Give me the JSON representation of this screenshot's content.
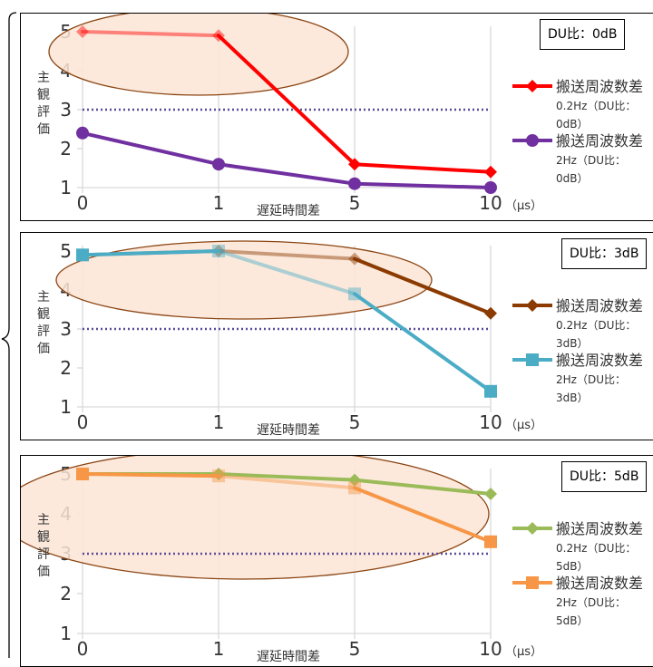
{
  "chart_data": [
    {
      "type": "line",
      "du_label": "DU比：0dB",
      "ylabel": "主観評価",
      "xlabel": "遅延時間差",
      "x_unit": "（μs）",
      "categories": [
        "0",
        "1",
        "5",
        "10"
      ],
      "ylim": [
        1,
        5
      ],
      "yticks": [
        "1",
        "2",
        "3",
        "4",
        "5"
      ],
      "reference_line": 3,
      "series": [
        {
          "name": "搬送周波数差0.2Hz（DU比：0dB）",
          "legend_lines": [
            "搬送周波数差",
            "0.2Hz（DU比：",
            "0dB）"
          ],
          "values": [
            5.0,
            4.9,
            1.6,
            1.4
          ],
          "color": "#ff0000",
          "marker": "diamond",
          "faded_points": [
            0,
            1
          ]
        },
        {
          "name": "搬送周波数差2Hz（DU比：0dB）",
          "legend_lines": [
            "搬送周波数差",
            "2Hz（DU比：",
            "0dB）"
          ],
          "values": [
            2.4,
            1.6,
            1.1,
            1.0
          ],
          "color": "#7030a0",
          "marker": "circle",
          "faded_points": []
        }
      ]
    },
    {
      "type": "line",
      "du_label": "DU比：3dB",
      "ylabel": "主観評価",
      "xlabel": "遅延時間差",
      "x_unit": "（μs）",
      "categories": [
        "0",
        "1",
        "5",
        "10"
      ],
      "ylim": [
        1,
        5
      ],
      "yticks": [
        "1",
        "2",
        "3",
        "4",
        "5"
      ],
      "reference_line": 3,
      "series": [
        {
          "name": "搬送周波数差0.2Hz（DU比：3dB）",
          "legend_lines": [
            "搬送周波数差",
            "0.2Hz（DU比：",
            "3dB）"
          ],
          "values": [
            4.9,
            5.0,
            4.8,
            3.4
          ],
          "color": "#8b3a00",
          "marker": "diamond",
          "faded_points": [
            0,
            1,
            2
          ]
        },
        {
          "name": "搬送周波数差2Hz（DU比：3dB）",
          "legend_lines": [
            "搬送周波数差",
            "2Hz（DU比：",
            "3dB）"
          ],
          "values": [
            4.9,
            5.0,
            3.9,
            1.4
          ],
          "color": "#4bacc6",
          "marker": "square",
          "faded_points": [
            1,
            2
          ]
        }
      ]
    },
    {
      "type": "line",
      "du_label": "DU比：5dB",
      "ylabel": "主観評価",
      "xlabel": "遅延時間差",
      "x_unit": "（μs）",
      "categories": [
        "0",
        "1",
        "5",
        "10"
      ],
      "ylim": [
        1,
        5
      ],
      "yticks": [
        "1",
        "2",
        "3",
        "4",
        "5"
      ],
      "reference_line": 3,
      "series": [
        {
          "name": "搬送周波数差0.2Hz（DU比：5dB）",
          "legend_lines": [
            "搬送周波数差",
            "0.2Hz（DU比：",
            "5dB）"
          ],
          "values": [
            5.0,
            5.0,
            4.85,
            4.5
          ],
          "color": "#9bbb59",
          "marker": "diamond",
          "faded_points": []
        },
        {
          "name": "搬送周波数差2Hz（DU比：5dB）",
          "legend_lines": [
            "搬送周波数差",
            "2Hz（DU比：",
            "5dB）"
          ],
          "values": [
            5.0,
            4.95,
            4.65,
            3.3
          ],
          "color": "#f79646",
          "marker": "square",
          "faded_points": [
            1,
            2
          ]
        }
      ]
    }
  ],
  "colors": {
    "grid": "#d9d9d9",
    "reference": "#5b4a9b",
    "highlight_fill": "#fbe5d6",
    "highlight_stroke": "#8b4513"
  }
}
